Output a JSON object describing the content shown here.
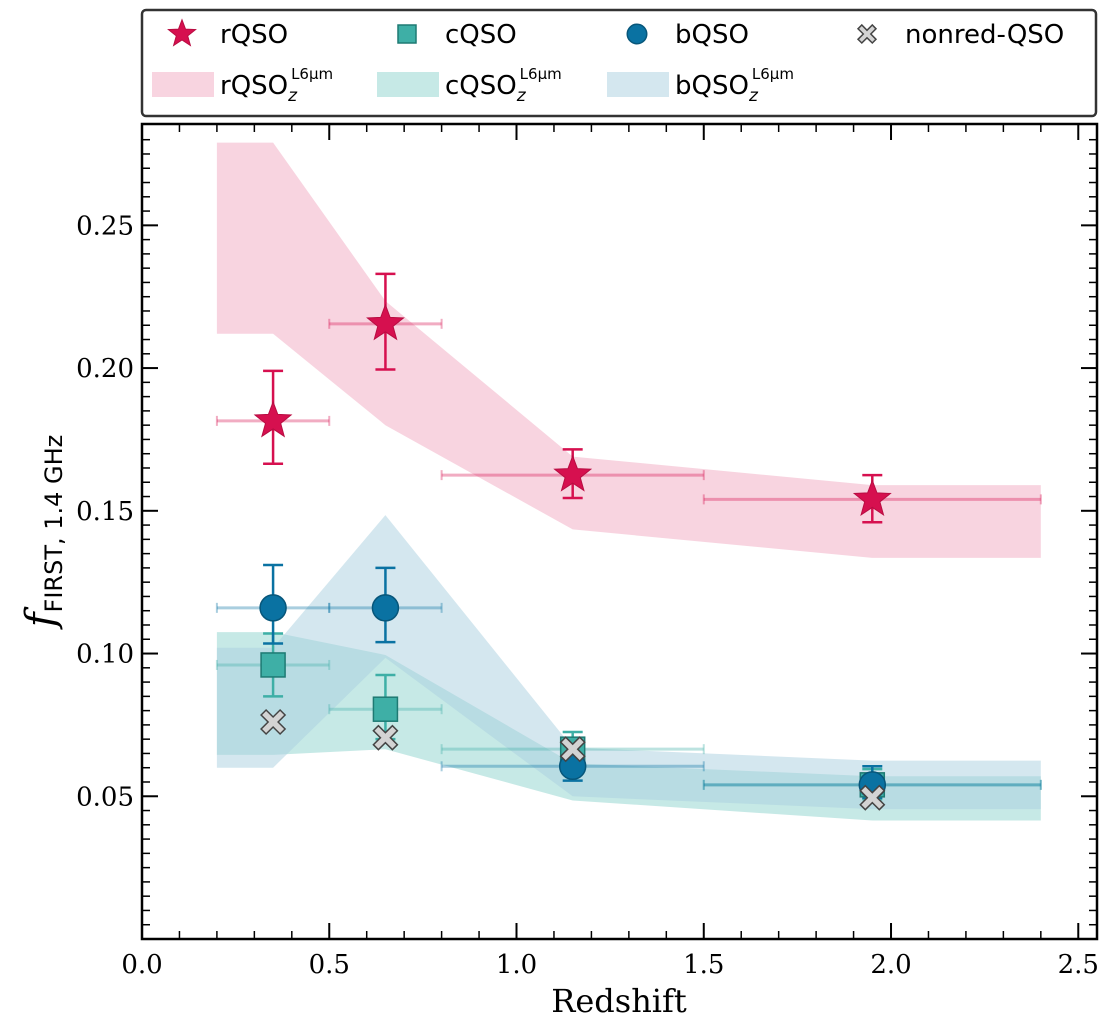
{
  "chart_data": {
    "type": "scatter",
    "title": "",
    "xlabel": "Redshift",
    "ylabel": {
      "main": "f",
      "sub": "FIRST, 1.4 GHz"
    },
    "xlim": [
      0.0,
      2.55
    ],
    "ylim": [
      0.0,
      0.2855
    ],
    "xticks": [
      0.0,
      0.5,
      1.0,
      1.5,
      2.0,
      2.5
    ],
    "xtick_labels": [
      "0.0",
      "0.5",
      "1.0",
      "1.5",
      "2.0",
      "2.5"
    ],
    "yticks": [
      0.05,
      0.1,
      0.15,
      0.2,
      0.25
    ],
    "ytick_labels": [
      "0.05",
      "0.10",
      "0.15",
      "0.20",
      "0.25"
    ],
    "grid": false,
    "legend_position": "top, outside plot",
    "series": [
      {
        "name": "rQSO",
        "marker": "star",
        "color": "#d6104f",
        "points": [
          {
            "x": 0.35,
            "xerr": [
              0.2,
              0.5
            ],
            "y": 0.1815,
            "yerr": [
              0.1665,
              0.199
            ]
          },
          {
            "x": 0.65,
            "xerr": [
              0.5,
              0.8
            ],
            "y": 0.2155,
            "yerr": [
              0.1995,
              0.233
            ]
          },
          {
            "x": 1.15,
            "xerr": [
              0.8,
              1.5
            ],
            "y": 0.1625,
            "yerr": [
              0.1545,
              0.1715
            ]
          },
          {
            "x": 1.95,
            "xerr": [
              1.5,
              2.4
            ],
            "y": 0.154,
            "yerr": [
              0.146,
              0.1625
            ]
          }
        ]
      },
      {
        "name": "cQSO",
        "marker": "square",
        "color": "#3eafa6",
        "points": [
          {
            "x": 0.35,
            "xerr": [
              0.2,
              0.5
            ],
            "y": 0.096,
            "yerr": [
              0.085,
              0.107
            ]
          },
          {
            "x": 0.65,
            "xerr": [
              0.5,
              0.8
            ],
            "y": 0.0805,
            "yerr": [
              0.07,
              0.0925
            ]
          },
          {
            "x": 1.15,
            "xerr": [
              0.8,
              1.5
            ],
            "y": 0.0665,
            "yerr": [
              0.0605,
              0.0725
            ]
          },
          {
            "x": 1.95,
            "xerr": [
              1.5,
              2.4
            ],
            "y": 0.054,
            "yerr": [
              0.049,
              0.0595
            ]
          }
        ]
      },
      {
        "name": "bQSO",
        "marker": "circle",
        "color": "#0a72a2",
        "points": [
          {
            "x": 0.35,
            "xerr": [
              0.2,
              0.5
            ],
            "y": 0.116,
            "yerr": [
              0.1035,
              0.131
            ]
          },
          {
            "x": 0.65,
            "xerr": [
              0.5,
              0.8
            ],
            "y": 0.116,
            "yerr": [
              0.104,
              0.13
            ]
          },
          {
            "x": 1.15,
            "xerr": [
              0.8,
              1.5
            ],
            "y": 0.0605,
            "yerr": [
              0.0555,
              0.066
            ]
          },
          {
            "x": 1.95,
            "xerr": [
              1.5,
              2.4
            ],
            "y": 0.054,
            "yerr": [
              0.0495,
              0.0605
            ]
          }
        ]
      },
      {
        "name": "nonred-QSO",
        "marker": "x",
        "color": "#d3d3d3",
        "points": [
          {
            "x": 0.35,
            "y": 0.076
          },
          {
            "x": 0.65,
            "y": 0.0705
          },
          {
            "x": 1.15,
            "y": 0.0665
          },
          {
            "x": 1.95,
            "y": 0.0495
          }
        ]
      }
    ],
    "bands": [
      {
        "name": "rQSO",
        "name_sup": "L6μm",
        "name_sub": "z",
        "color": "#f2a9c2",
        "x": [
          0.2,
          0.35,
          0.65,
          1.15,
          1.95,
          2.4
        ],
        "upper": [
          0.279,
          0.279,
          0.2235,
          0.169,
          0.159,
          0.159
        ],
        "lower": [
          0.212,
          0.212,
          0.18,
          0.1435,
          0.1335,
          0.1335
        ]
      },
      {
        "name": "cQSO",
        "name_sup": "L6μm",
        "name_sub": "z",
        "color": "#8ed3cd",
        "x": [
          0.2,
          0.35,
          0.65,
          1.15,
          1.95,
          2.4
        ],
        "upper": [
          0.1075,
          0.1075,
          0.0995,
          0.0615,
          0.057,
          0.057
        ],
        "lower": [
          0.0645,
          0.0645,
          0.0665,
          0.0485,
          0.0415,
          0.0415
        ]
      },
      {
        "name": "bQSO",
        "name_sup": "L6μm",
        "name_sub": "z",
        "color": "#a9cfe0",
        "x": [
          0.2,
          0.35,
          0.65,
          1.15,
          1.95,
          2.4
        ],
        "upper": [
          0.102,
          0.102,
          0.1485,
          0.067,
          0.0625,
          0.0625
        ],
        "lower": [
          0.06,
          0.06,
          0.0985,
          0.05,
          0.0455,
          0.0455
        ]
      }
    ]
  }
}
